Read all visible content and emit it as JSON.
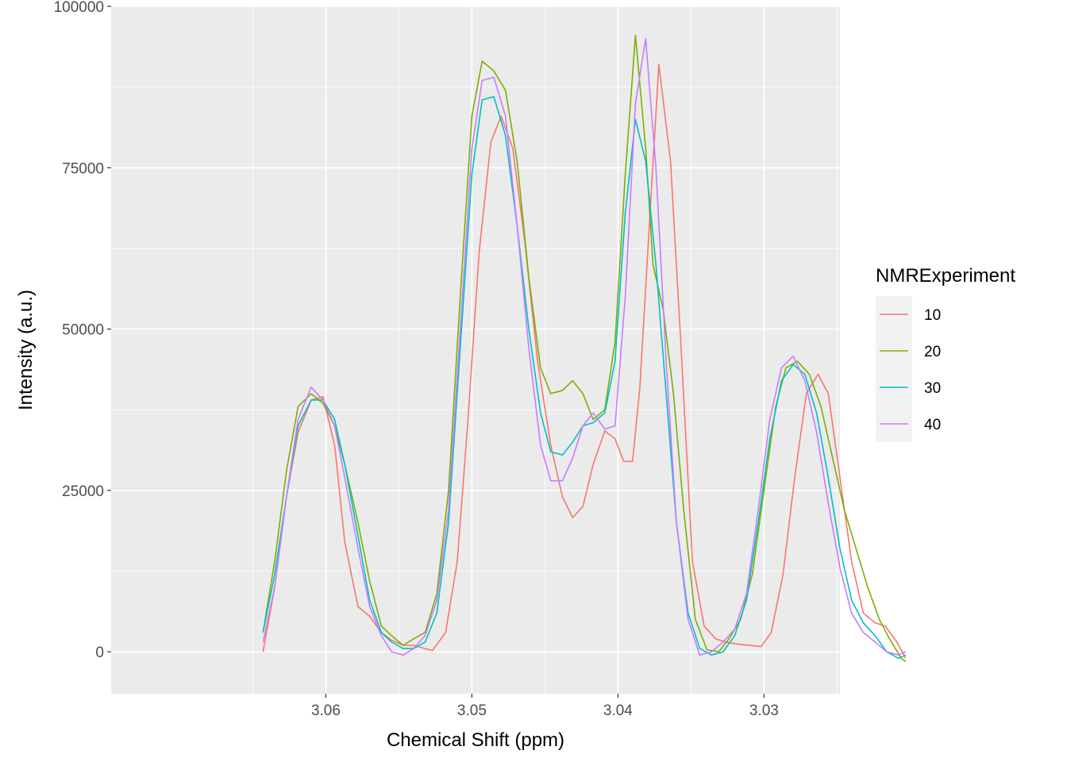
{
  "chart_data": {
    "type": "line",
    "title": "",
    "xlabel": "Chemical Shift (ppm)",
    "ylabel": "Intensity (a.u.)",
    "x_reversed": true,
    "xlim": [
      3.0747,
      3.0248
    ],
    "ylim": [
      -6500,
      100000
    ],
    "x_ticks": [
      3.06,
      3.05,
      3.04,
      3.03
    ],
    "x_tick_labels": [
      "3.06",
      "3.05",
      "3.04",
      "3.03"
    ],
    "y_ticks": [
      0,
      25000,
      50000,
      75000,
      100000
    ],
    "y_tick_labels": [
      "0",
      "25000",
      "50000",
      "75000",
      "100000"
    ],
    "grid": true,
    "panel_background": "#ebebeb",
    "grid_color": "#ffffff",
    "legend": {
      "title": "NMRExperiment",
      "position": "right",
      "entries": [
        "10",
        "20",
        "30",
        "40"
      ]
    },
    "series": [
      {
        "name": "10",
        "color": "#F8766D",
        "points": [
          [
            3.0643,
            0
          ],
          [
            3.0635,
            10000
          ],
          [
            3.0627,
            24000
          ],
          [
            3.0619,
            34000
          ],
          [
            3.061,
            39000
          ],
          [
            3.0602,
            39500
          ],
          [
            3.0594,
            32000
          ],
          [
            3.0587,
            17000
          ],
          [
            3.0578,
            7000
          ],
          [
            3.057,
            5500
          ],
          [
            3.0562,
            3000
          ],
          [
            3.0555,
            1800
          ],
          [
            3.0547,
            1000
          ],
          [
            3.054,
            1000
          ],
          [
            3.0532,
            500
          ],
          [
            3.0527,
            200
          ],
          [
            3.0518,
            3000
          ],
          [
            3.051,
            14000
          ],
          [
            3.0503,
            35000
          ],
          [
            3.0495,
            62000
          ],
          [
            3.0487,
            79000
          ],
          [
            3.048,
            83000
          ],
          [
            3.0472,
            78000
          ],
          [
            3.0464,
            64000
          ],
          [
            3.0455,
            45000
          ],
          [
            3.0446,
            32000
          ],
          [
            3.0438,
            24000
          ],
          [
            3.0431,
            20800
          ],
          [
            3.0424,
            22500
          ],
          [
            3.0417,
            29000
          ],
          [
            3.0409,
            34200
          ],
          [
            3.0402,
            33000
          ],
          [
            3.0396,
            29500
          ],
          [
            3.039,
            29500
          ],
          [
            3.0385,
            41000
          ],
          [
            3.0377,
            72000
          ],
          [
            3.0372,
            91000
          ],
          [
            3.0364,
            76000
          ],
          [
            3.0357,
            48000
          ],
          [
            3.0349,
            14000
          ],
          [
            3.0341,
            4000
          ],
          [
            3.0333,
            2000
          ],
          [
            3.0326,
            1500
          ],
          [
            3.0318,
            1200
          ],
          [
            3.031,
            1000
          ],
          [
            3.0302,
            800
          ],
          [
            3.0295,
            3000
          ],
          [
            3.0287,
            12000
          ],
          [
            3.0279,
            27000
          ],
          [
            3.0271,
            40000
          ],
          [
            3.0263,
            43000
          ],
          [
            3.0256,
            40000
          ],
          [
            3.0248,
            27000
          ],
          [
            3.024,
            14000
          ],
          [
            3.0232,
            6000
          ],
          [
            3.0224,
            4500
          ],
          [
            3.0217,
            4000
          ],
          [
            3.0209,
            1500
          ],
          [
            3.0203,
            -1000
          ]
        ]
      },
      {
        "name": "20",
        "color": "#7CAE00",
        "points": [
          [
            3.0643,
            3000
          ],
          [
            3.0635,
            14000
          ],
          [
            3.0627,
            28000
          ],
          [
            3.0619,
            38000
          ],
          [
            3.061,
            40000
          ],
          [
            3.0602,
            38500
          ],
          [
            3.0594,
            35000
          ],
          [
            3.0587,
            29000
          ],
          [
            3.0578,
            20000
          ],
          [
            3.057,
            11000
          ],
          [
            3.0562,
            4000
          ],
          [
            3.0555,
            2500
          ],
          [
            3.0547,
            1000
          ],
          [
            3.054,
            2000
          ],
          [
            3.0532,
            3000
          ],
          [
            3.0524,
            9000
          ],
          [
            3.0516,
            25000
          ],
          [
            3.0508,
            55000
          ],
          [
            3.05,
            83000
          ],
          [
            3.0493,
            91500
          ],
          [
            3.0485,
            90000
          ],
          [
            3.0477,
            87000
          ],
          [
            3.0469,
            76000
          ],
          [
            3.0461,
            58000
          ],
          [
            3.0453,
            44000
          ],
          [
            3.0446,
            40000
          ],
          [
            3.0438,
            40500
          ],
          [
            3.0431,
            42000
          ],
          [
            3.0424,
            40000
          ],
          [
            3.0417,
            36000
          ],
          [
            3.0409,
            37500
          ],
          [
            3.0402,
            48000
          ],
          [
            3.0395,
            74000
          ],
          [
            3.0388,
            95500
          ],
          [
            3.0381,
            78000
          ],
          [
            3.0376,
            60000
          ],
          [
            3.0369,
            53000
          ],
          [
            3.0362,
            40000
          ],
          [
            3.0355,
            22000
          ],
          [
            3.0347,
            5000
          ],
          [
            3.0339,
            300
          ],
          [
            3.0331,
            0
          ],
          [
            3.0324,
            2000
          ],
          [
            3.0316,
            5000
          ],
          [
            3.0308,
            12000
          ],
          [
            3.03,
            25000
          ],
          [
            3.0292,
            38000
          ],
          [
            3.0285,
            44000
          ],
          [
            3.0277,
            45000
          ],
          [
            3.0269,
            43000
          ],
          [
            3.0261,
            38000
          ],
          [
            3.0253,
            30000
          ],
          [
            3.0245,
            22000
          ],
          [
            3.0237,
            16000
          ],
          [
            3.0229,
            10000
          ],
          [
            3.0221,
            5000
          ],
          [
            3.0214,
            2000
          ],
          [
            3.0206,
            -1000
          ],
          [
            3.0203,
            -1500
          ]
        ]
      },
      {
        "name": "30",
        "color": "#00BFC4",
        "points": [
          [
            3.0643,
            3000
          ],
          [
            3.0635,
            12000
          ],
          [
            3.0627,
            24000
          ],
          [
            3.0619,
            35000
          ],
          [
            3.061,
            39000
          ],
          [
            3.0602,
            39000
          ],
          [
            3.0594,
            36000
          ],
          [
            3.0587,
            29000
          ],
          [
            3.0578,
            18000
          ],
          [
            3.057,
            8000
          ],
          [
            3.0562,
            3000
          ],
          [
            3.0555,
            1500
          ],
          [
            3.0547,
            500
          ],
          [
            3.054,
            500
          ],
          [
            3.0532,
            1500
          ],
          [
            3.0524,
            6000
          ],
          [
            3.0516,
            20000
          ],
          [
            3.0508,
            47000
          ],
          [
            3.05,
            74000
          ],
          [
            3.0493,
            85500
          ],
          [
            3.0485,
            86000
          ],
          [
            3.0477,
            80000
          ],
          [
            3.0469,
            66000
          ],
          [
            3.0461,
            50000
          ],
          [
            3.0453,
            37000
          ],
          [
            3.0446,
            31000
          ],
          [
            3.0438,
            30500
          ],
          [
            3.0431,
            32500
          ],
          [
            3.0424,
            35000
          ],
          [
            3.0417,
            35500
          ],
          [
            3.0409,
            37000
          ],
          [
            3.0402,
            45000
          ],
          [
            3.0395,
            68000
          ],
          [
            3.0388,
            82500
          ],
          [
            3.0381,
            76000
          ],
          [
            3.0374,
            60000
          ],
          [
            3.0367,
            40000
          ],
          [
            3.036,
            20000
          ],
          [
            3.0352,
            6000
          ],
          [
            3.0344,
            500
          ],
          [
            3.0336,
            -500
          ],
          [
            3.0328,
            0
          ],
          [
            3.032,
            2500
          ],
          [
            3.0312,
            8000
          ],
          [
            3.0304,
            20000
          ],
          [
            3.0296,
            33000
          ],
          [
            3.0288,
            42000
          ],
          [
            3.028,
            44500
          ],
          [
            3.0272,
            43000
          ],
          [
            3.0264,
            37000
          ],
          [
            3.0256,
            27000
          ],
          [
            3.0248,
            16000
          ],
          [
            3.024,
            8000
          ],
          [
            3.0232,
            4500
          ],
          [
            3.0224,
            2500
          ],
          [
            3.0216,
            0
          ],
          [
            3.0208,
            -1000
          ],
          [
            3.0203,
            -500
          ]
        ]
      },
      {
        "name": "40",
        "color": "#C77CFF",
        "points": [
          [
            3.0643,
            1500
          ],
          [
            3.0635,
            10000
          ],
          [
            3.0627,
            24000
          ],
          [
            3.0619,
            36000
          ],
          [
            3.061,
            41000
          ],
          [
            3.0602,
            39000
          ],
          [
            3.0594,
            35000
          ],
          [
            3.0587,
            27000
          ],
          [
            3.0578,
            16000
          ],
          [
            3.057,
            7000
          ],
          [
            3.0562,
            2500
          ],
          [
            3.0555,
            0
          ],
          [
            3.0547,
            -500
          ],
          [
            3.054,
            500
          ],
          [
            3.0532,
            2500
          ],
          [
            3.0524,
            8000
          ],
          [
            3.0516,
            22000
          ],
          [
            3.0508,
            50000
          ],
          [
            3.05,
            78000
          ],
          [
            3.0493,
            88500
          ],
          [
            3.0485,
            89000
          ],
          [
            3.0477,
            83000
          ],
          [
            3.0469,
            66000
          ],
          [
            3.0461,
            47000
          ],
          [
            3.0453,
            32000
          ],
          [
            3.0446,
            26500
          ],
          [
            3.0438,
            26500
          ],
          [
            3.0431,
            30000
          ],
          [
            3.0424,
            35000
          ],
          [
            3.0417,
            37000
          ],
          [
            3.0409,
            34500
          ],
          [
            3.0402,
            35000
          ],
          [
            3.0395,
            55000
          ],
          [
            3.0388,
            85000
          ],
          [
            3.0381,
            95000
          ],
          [
            3.0374,
            75000
          ],
          [
            3.0367,
            45000
          ],
          [
            3.036,
            20000
          ],
          [
            3.0352,
            5000
          ],
          [
            3.0344,
            -500
          ],
          [
            3.0336,
            0
          ],
          [
            3.0328,
            1500
          ],
          [
            3.032,
            3500
          ],
          [
            3.0312,
            9000
          ],
          [
            3.0304,
            22000
          ],
          [
            3.0296,
            36000
          ],
          [
            3.0288,
            44000
          ],
          [
            3.028,
            45800
          ],
          [
            3.0272,
            42000
          ],
          [
            3.0264,
            34000
          ],
          [
            3.0256,
            23000
          ],
          [
            3.0248,
            13000
          ],
          [
            3.024,
            6000
          ],
          [
            3.0232,
            3000
          ],
          [
            3.0224,
            1500
          ],
          [
            3.0216,
            0
          ],
          [
            3.0208,
            -500
          ],
          [
            3.0203,
            0
          ]
        ]
      }
    ]
  }
}
